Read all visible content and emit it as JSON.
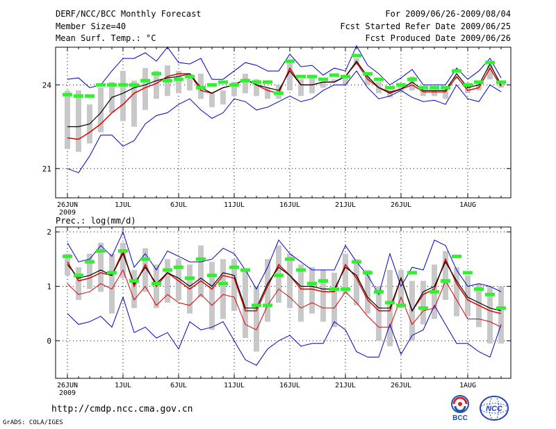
{
  "header": {
    "title": "DERF/NCC/BCC Monthly Forecast",
    "member_size": "Member Size=40",
    "variable": "Mean Surf. Temp.: °C",
    "period": "For 2009/06/26-2009/08/04",
    "started": "Fcst Started Refer Date 2009/06/25",
    "produced": "Fcst Produced Date 2009/06/26"
  },
  "footer": {
    "url": "http://cmdp.ncc.cma.gov.cn",
    "grads": "GrADS: COLA/IGES",
    "logo_bcc": "BCC",
    "logo_ncc": "NCC"
  },
  "colors": {
    "spread": "#c8c8c8",
    "mean": "#000000",
    "median": "#dd0000",
    "bounds": "#0000cc",
    "green": "#33ee33"
  },
  "chart_data": [
    {
      "type": "line",
      "title": "Mean Surf. Temp.: °C",
      "x_tick_labels": [
        "26JUN",
        "1JUL",
        "6JUL",
        "11JUL",
        "16JUL",
        "21JUL",
        "26JUL",
        "1AUG"
      ],
      "x_tick_days": [
        0,
        5,
        10,
        15,
        20,
        25,
        30,
        36
      ],
      "x_year": "2009",
      "y_ticks": [
        21,
        24
      ],
      "ylim": [
        19.95,
        25.35
      ],
      "days": 40,
      "series": [
        {
          "name": "max",
          "values": [
            24.2,
            24.25,
            23.9,
            24.0,
            24.5,
            24.95,
            24.95,
            25.15,
            24.85,
            25.35,
            24.8,
            24.75,
            24.95,
            24.2,
            24.2,
            24.5,
            24.8,
            24.7,
            24.5,
            24.5,
            25.1,
            24.65,
            24.7,
            24.35,
            24.6,
            24.5,
            25.4,
            24.7,
            24.4,
            24.0,
            24.25,
            24.55,
            24.0,
            24.0,
            24.0,
            24.6,
            24.2,
            24.5,
            24.95,
            24.25
          ]
        },
        {
          "name": "min",
          "values": [
            21.0,
            20.85,
            21.45,
            22.2,
            22.2,
            21.8,
            22.0,
            22.6,
            22.9,
            23.0,
            23.3,
            23.5,
            23.1,
            22.8,
            23.0,
            23.5,
            23.4,
            23.1,
            23.2,
            23.4,
            23.6,
            23.4,
            23.5,
            23.8,
            24.0,
            24.0,
            24.5,
            23.9,
            23.5,
            23.6,
            23.8,
            23.55,
            23.4,
            23.45,
            23.3,
            24.0,
            23.5,
            23.4,
            24.0,
            23.75
          ]
        },
        {
          "name": "mean",
          "values": [
            22.5,
            22.5,
            22.6,
            23.0,
            23.55,
            23.7,
            23.9,
            24.0,
            24.15,
            24.25,
            24.3,
            24.4,
            23.9,
            23.7,
            23.9,
            24.0,
            24.2,
            24.0,
            23.9,
            23.8,
            24.5,
            24.0,
            24.0,
            24.1,
            24.1,
            24.3,
            24.85,
            24.3,
            23.9,
            23.7,
            23.85,
            24.1,
            23.8,
            23.8,
            23.8,
            24.4,
            23.9,
            24.0,
            24.75,
            24.0
          ]
        },
        {
          "name": "median",
          "values": [
            22.1,
            22.05,
            22.3,
            22.6,
            23.0,
            23.3,
            23.7,
            23.9,
            24.05,
            24.3,
            24.4,
            24.4,
            23.8,
            23.7,
            23.9,
            24.0,
            24.2,
            24.0,
            23.8,
            23.7,
            24.6,
            24.0,
            24.0,
            24.1,
            24.1,
            24.3,
            24.8,
            24.2,
            23.9,
            23.75,
            23.85,
            24.0,
            23.75,
            23.75,
            23.75,
            24.3,
            23.8,
            23.9,
            24.6,
            23.95
          ]
        },
        {
          "name": "spread_top",
          "values": [
            23.8,
            23.8,
            23.3,
            23.9,
            24.1,
            24.5,
            24.15,
            24.6,
            24.5,
            24.7,
            24.5,
            24.4,
            24.4,
            23.7,
            23.8,
            24.1,
            24.4,
            24.2,
            23.9,
            24.0,
            24.8,
            24.2,
            24.3,
            24.1,
            24.2,
            24.3,
            24.95,
            24.4,
            24.1,
            23.8,
            24.0,
            24.3,
            23.8,
            23.8,
            23.8,
            24.3,
            24.0,
            24.1,
            24.7,
            24.1
          ]
        },
        {
          "name": "spread_bottom",
          "values": [
            21.7,
            21.6,
            21.9,
            22.3,
            23.0,
            22.7,
            22.5,
            23.1,
            23.5,
            23.6,
            23.7,
            23.8,
            23.5,
            23.2,
            23.3,
            23.6,
            23.7,
            23.6,
            23.5,
            23.5,
            23.8,
            23.6,
            23.7,
            23.9,
            24.1,
            24.0,
            24.7,
            24.0,
            23.7,
            23.55,
            23.75,
            23.8,
            23.6,
            23.6,
            23.5,
            24.2,
            23.7,
            23.8,
            24.2,
            23.9
          ]
        },
        {
          "name": "green",
          "values": [
            23.65,
            23.6,
            23.6,
            24.0,
            24.0,
            24.0,
            24.0,
            24.15,
            24.4,
            24.15,
            24.2,
            24.3,
            23.9,
            24.0,
            24.1,
            24.0,
            24.15,
            24.1,
            24.1,
            23.7,
            24.85,
            24.3,
            24.3,
            24.2,
            24.35,
            24.3,
            25.05,
            24.4,
            24.2,
            23.9,
            24.0,
            24.2,
            23.9,
            23.9,
            23.9,
            24.5,
            24.0,
            24.1,
            24.8,
            24.1
          ]
        }
      ]
    },
    {
      "type": "line",
      "title": "Prec.: log(mm/d)",
      "x_tick_labels": [
        "26JUN",
        "1JUL",
        "6JUL",
        "11JUL",
        "16JUL",
        "21JUL",
        "26JUL",
        "1AUG"
      ],
      "x_tick_days": [
        0,
        5,
        10,
        15,
        20,
        25,
        30,
        36
      ],
      "x_year": "2009",
      "y_ticks": [
        0,
        1,
        2
      ],
      "ylim": [
        -0.69,
        2.09
      ],
      "days": 40,
      "series": [
        {
          "name": "max",
          "values": [
            1.8,
            1.45,
            1.5,
            1.75,
            1.55,
            2.0,
            1.35,
            1.6,
            1.3,
            1.65,
            1.55,
            1.45,
            1.45,
            1.5,
            1.7,
            1.6,
            1.3,
            0.95,
            1.35,
            1.85,
            1.6,
            1.45,
            1.3,
            1.3,
            1.3,
            1.75,
            1.45,
            1.2,
            0.85,
            1.6,
            1.0,
            1.35,
            1.3,
            1.85,
            1.75,
            1.3,
            1.0,
            1.05,
            1.0,
            0.9
          ]
        },
        {
          "name": "min",
          "values": [
            0.5,
            0.3,
            0.35,
            0.45,
            0.25,
            0.8,
            0.15,
            0.25,
            0.05,
            0.15,
            -0.15,
            0.35,
            0.2,
            0.25,
            0.35,
            0.0,
            -0.35,
            -0.45,
            -0.15,
            0.0,
            0.1,
            -0.1,
            -0.05,
            -0.05,
            0.35,
            0.2,
            -0.2,
            -0.3,
            -0.3,
            0.3,
            -0.25,
            0.1,
            0.2,
            0.65,
            0.3,
            -0.05,
            -0.05,
            -0.2,
            -0.3,
            0.3
          ]
        },
        {
          "name": "mean",
          "values": [
            1.4,
            1.15,
            1.2,
            1.3,
            1.2,
            1.6,
            1.05,
            1.35,
            1.05,
            1.25,
            1.15,
            1.0,
            1.15,
            1.0,
            1.25,
            1.2,
            0.6,
            0.6,
            1.05,
            1.35,
            1.2,
            1.0,
            1.0,
            0.95,
            0.95,
            1.35,
            1.2,
            0.8,
            0.6,
            0.6,
            1.15,
            0.55,
            0.9,
            1.0,
            1.45,
            1.1,
            0.8,
            0.7,
            0.6,
            0.55
          ]
        },
        {
          "name": "median",
          "values": [
            1.45,
            1.1,
            1.15,
            1.25,
            1.2,
            1.65,
            1.0,
            1.4,
            1.0,
            1.25,
            1.1,
            0.95,
            1.1,
            0.95,
            1.2,
            1.15,
            0.55,
            0.55,
            1.0,
            1.4,
            1.2,
            0.95,
            0.95,
            0.9,
            0.9,
            1.4,
            1.15,
            0.75,
            0.55,
            0.55,
            1.15,
            0.55,
            0.85,
            0.95,
            1.5,
            1.05,
            0.75,
            0.65,
            0.55,
            0.5
          ]
        },
        {
          "name": "lower",
          "values": [
            1.05,
            0.85,
            0.9,
            1.05,
            0.95,
            1.3,
            0.75,
            1.0,
            0.65,
            0.85,
            0.7,
            0.65,
            0.85,
            0.65,
            0.85,
            0.8,
            0.3,
            0.2,
            0.65,
            0.95,
            0.8,
            0.6,
            0.7,
            0.6,
            0.6,
            0.9,
            0.7,
            0.45,
            0.25,
            0.25,
            0.8,
            0.3,
            0.55,
            0.6,
            1.1,
            0.75,
            0.4,
            0.4,
            0.35,
            0.25
          ]
        },
        {
          "name": "spread_top",
          "values": [
            1.6,
            1.35,
            1.6,
            1.8,
            1.6,
            1.8,
            1.3,
            1.7,
            1.4,
            1.5,
            1.5,
            1.4,
            1.75,
            1.45,
            1.5,
            1.5,
            1.3,
            1.0,
            1.5,
            1.75,
            1.6,
            1.4,
            1.35,
            1.3,
            1.25,
            1.6,
            1.5,
            1.3,
            1.0,
            1.3,
            1.3,
            1.1,
            1.1,
            1.4,
            1.65,
            1.35,
            1.2,
            1.05,
            1.0,
            1.0
          ]
        },
        {
          "name": "spread_bottom",
          "values": [
            1.2,
            0.75,
            0.95,
            0.9,
            0.5,
            1.15,
            0.6,
            0.9,
            0.6,
            0.7,
            0.75,
            0.5,
            0.8,
            0.2,
            0.4,
            0.55,
            0.05,
            -0.2,
            0.35,
            0.7,
            0.6,
            0.35,
            0.5,
            0.35,
            0.25,
            0.85,
            0.65,
            0.5,
            0.0,
            -0.1,
            0.6,
            0.0,
            0.3,
            0.4,
            0.75,
            0.45,
            0.45,
            0.25,
            -0.05,
            -0.05
          ]
        },
        {
          "name": "green",
          "values": [
            1.55,
            1.2,
            1.45,
            1.65,
            1.25,
            1.65,
            1.1,
            1.5,
            1.05,
            1.3,
            1.35,
            1.15,
            1.5,
            1.2,
            1.05,
            1.35,
            1.3,
            0.65,
            0.65,
            1.2,
            1.5,
            1.3,
            1.05,
            1.1,
            0.95,
            0.95,
            1.45,
            1.25,
            0.9,
            0.7,
            0.65,
            1.25,
            0.6,
            0.9,
            1.1,
            1.55,
            1.25,
            0.95,
            0.85,
            0.6
          ]
        }
      ]
    }
  ]
}
